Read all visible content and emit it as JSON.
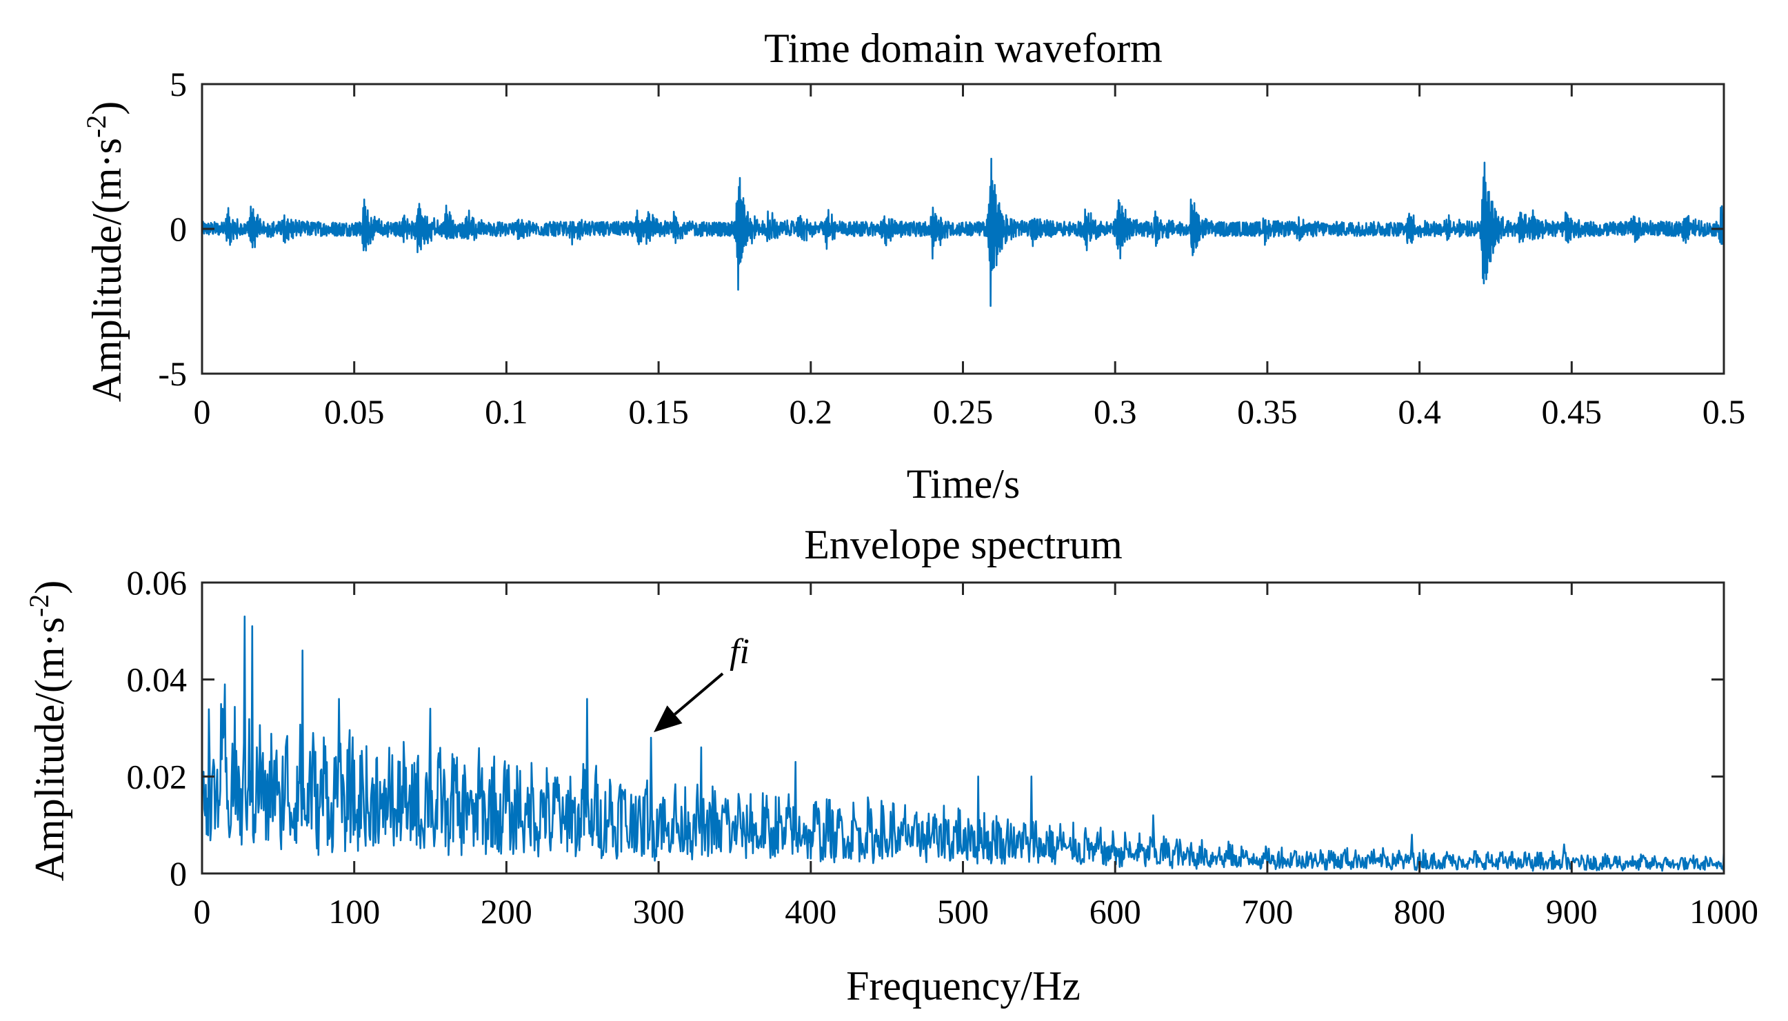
{
  "chart_data": [
    {
      "type": "line",
      "title": "Time domain waveform",
      "xlabel": "Time/s",
      "ylabel": "Amplitude/(m·s",
      "ylabel_exponent": "-2",
      "ylabel_close": ")",
      "xlim": [
        0,
        0.5
      ],
      "ylim": [
        -5,
        5
      ],
      "xticks": [
        0,
        0.05,
        0.1,
        0.15,
        0.2,
        0.25,
        0.3,
        0.35,
        0.4,
        0.45,
        0.5
      ],
      "xtick_labels": [
        "0",
        "0.05",
        "0.1",
        "0.15",
        "0.2",
        "0.25",
        "0.3",
        "0.35",
        "0.4",
        "0.45",
        "0.5"
      ],
      "yticks": [
        -5,
        0,
        5
      ],
      "ytick_labels": [
        "-5",
        "0",
        "5"
      ],
      "grid": false,
      "color": "#0072BD",
      "series": [
        {
          "name": "waveform",
          "baseline_noise_amplitude": 0.25,
          "impulses": [
            {
              "t": 0.008,
              "amp": 0.7
            },
            {
              "t": 0.016,
              "amp": 0.8
            },
            {
              "t": 0.027,
              "amp": 0.5
            },
            {
              "t": 0.053,
              "amp": 0.95
            },
            {
              "t": 0.066,
              "amp": 0.5
            },
            {
              "t": 0.071,
              "amp": 1.1
            },
            {
              "t": 0.08,
              "amp": 0.7
            },
            {
              "t": 0.087,
              "amp": 0.7
            },
            {
              "t": 0.104,
              "amp": 0.4
            },
            {
              "t": 0.121,
              "amp": 0.5
            },
            {
              "t": 0.143,
              "amp": 0.6
            },
            {
              "t": 0.146,
              "amp": 0.8
            },
            {
              "t": 0.155,
              "amp": 0.5
            },
            {
              "t": 0.176,
              "amp": 2.3
            },
            {
              "t": 0.186,
              "amp": 0.6
            },
            {
              "t": 0.196,
              "amp": 0.5
            },
            {
              "t": 0.205,
              "amp": 0.7
            },
            {
              "t": 0.224,
              "amp": 0.5
            },
            {
              "t": 0.24,
              "amp": 1.1
            },
            {
              "t": 0.259,
              "amp": 2.8
            },
            {
              "t": 0.273,
              "amp": 0.6
            },
            {
              "t": 0.29,
              "amp": 0.8
            },
            {
              "t": 0.301,
              "amp": 1.5
            },
            {
              "t": 0.313,
              "amp": 0.6
            },
            {
              "t": 0.325,
              "amp": 1.1
            },
            {
              "t": 0.349,
              "amp": 0.4
            },
            {
              "t": 0.36,
              "amp": 0.35
            },
            {
              "t": 0.396,
              "amp": 0.6
            },
            {
              "t": 0.409,
              "amp": 0.5
            },
            {
              "t": 0.421,
              "amp": 2.9
            },
            {
              "t": 0.433,
              "amp": 0.7
            },
            {
              "t": 0.437,
              "amp": 0.6
            },
            {
              "t": 0.448,
              "amp": 0.5
            },
            {
              "t": 0.47,
              "amp": 0.5
            },
            {
              "t": 0.487,
              "amp": 0.5
            },
            {
              "t": 0.499,
              "amp": 0.9
            }
          ]
        }
      ]
    },
    {
      "type": "line",
      "title": "Envelope spectrum",
      "xlabel": "Frequency/Hz",
      "ylabel": "Amplitude/(m·s",
      "ylabel_exponent": "-2",
      "ylabel_close": ")",
      "xlim": [
        0,
        1000
      ],
      "ylim": [
        0,
        0.06
      ],
      "xticks": [
        0,
        100,
        200,
        300,
        400,
        500,
        600,
        700,
        800,
        900,
        1000
      ],
      "xtick_labels": [
        "0",
        "100",
        "200",
        "300",
        "400",
        "500",
        "600",
        "700",
        "800",
        "900",
        "1000"
      ],
      "yticks": [
        0,
        0.02,
        0.04,
        0.06
      ],
      "ytick_labels": [
        "0",
        "0.02",
        "0.04",
        "0.06"
      ],
      "grid": false,
      "color": "#0072BD",
      "series": [
        {
          "name": "envelope spectrum",
          "envelope_points": [
            [
              0,
              0.024
            ],
            [
              100,
              0.02
            ],
            [
              200,
              0.017
            ],
            [
              300,
              0.014
            ],
            [
              400,
              0.011
            ],
            [
              500,
              0.01
            ],
            [
              600,
              0.006
            ],
            [
              700,
              0.004
            ],
            [
              800,
              0.0035
            ],
            [
              900,
              0.003
            ],
            [
              1000,
              0.0025
            ]
          ],
          "peaks": [
            {
              "f": 15,
              "v": 0.039
            },
            {
              "f": 28,
              "v": 0.053
            },
            {
              "f": 33,
              "v": 0.051
            },
            {
              "f": 66,
              "v": 0.046
            },
            {
              "f": 90,
              "v": 0.036
            },
            {
              "f": 150,
              "v": 0.034
            },
            {
              "f": 253,
              "v": 0.036
            },
            {
              "f": 295,
              "v": 0.028
            },
            {
              "f": 328,
              "v": 0.026
            },
            {
              "f": 390,
              "v": 0.023
            },
            {
              "f": 510,
              "v": 0.02
            },
            {
              "f": 545,
              "v": 0.02
            },
            {
              "f": 625,
              "v": 0.012
            },
            {
              "f": 795,
              "v": 0.008
            },
            {
              "f": 895,
              "v": 0.006
            },
            {
              "f": 1000,
              "v": 0.005
            }
          ]
        }
      ],
      "annotation": {
        "text": "fi",
        "x": 295,
        "y": 0.028
      }
    }
  ]
}
